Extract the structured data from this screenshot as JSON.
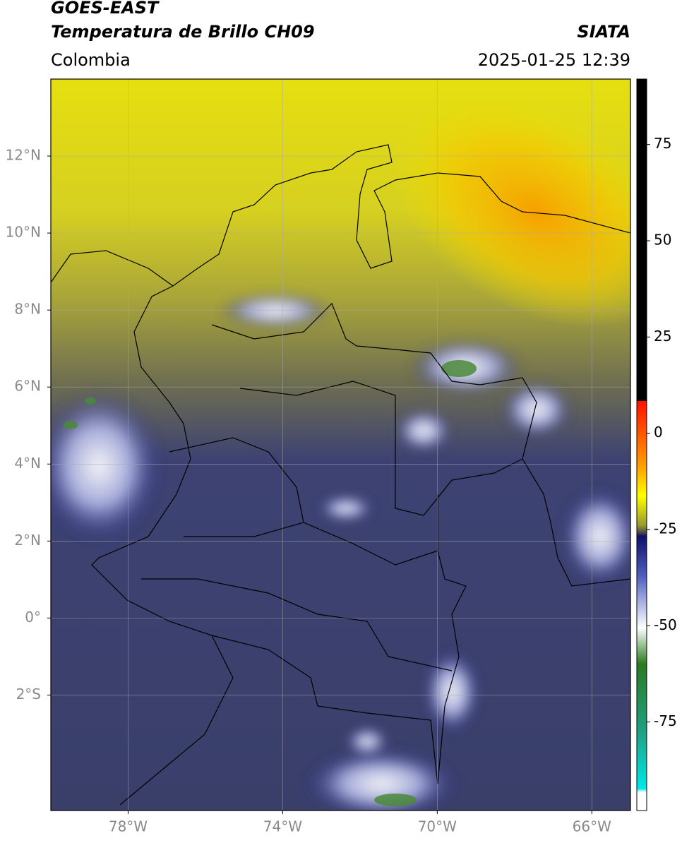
{
  "header": {
    "title": "GOES-EAST",
    "subtitle": "Temperatura de Brillo CH09",
    "region": "Colombia",
    "source": "SIATA",
    "datetime": "2025-01-25 12:39"
  },
  "map": {
    "xlim": [
      -80,
      -65
    ],
    "ylim": [
      -5,
      14
    ],
    "xticks": [
      {
        "value": -78,
        "label": "78°W"
      },
      {
        "value": -74,
        "label": "74°W"
      },
      {
        "value": -70,
        "label": "70°W"
      },
      {
        "value": -66,
        "label": "66°W"
      }
    ],
    "yticks": [
      {
        "value": 12,
        "label": "12°N"
      },
      {
        "value": 10,
        "label": "10°N"
      },
      {
        "value": 8,
        "label": "8°N"
      },
      {
        "value": 6,
        "label": "6°N"
      },
      {
        "value": 4,
        "label": "4°N"
      },
      {
        "value": 2,
        "label": "2°N"
      },
      {
        "value": 0,
        "label": "0°"
      },
      {
        "value": -2,
        "label": "2°S"
      }
    ],
    "grid": true
  },
  "colorbar": {
    "lim": [
      -98,
      92
    ],
    "ticks": [
      75,
      50,
      25,
      0,
      -25,
      -50,
      -75
    ]
  }
}
